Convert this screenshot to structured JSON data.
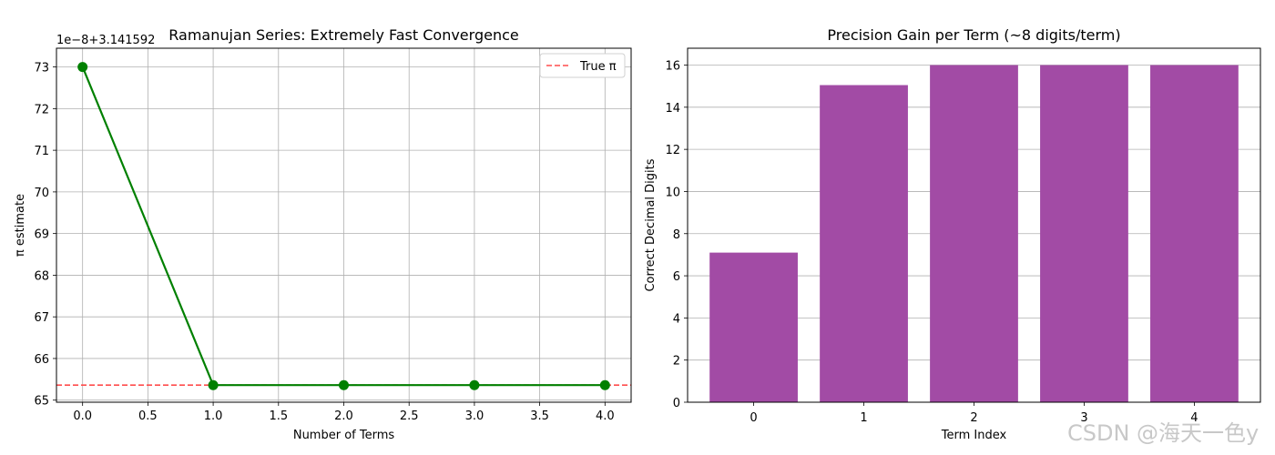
{
  "chart_data": [
    {
      "type": "line",
      "title": "Ramanujan Series: Extremely Fast Convergence",
      "xlabel": "Number of Terms",
      "ylabel": "π estimate",
      "offset_label": "1e−8+3.141592",
      "xlim": [
        -0.2,
        4.2
      ],
      "ylim": [
        64.95,
        73.45
      ],
      "x_ticks": [
        "0.0",
        "0.5",
        "1.0",
        "1.5",
        "2.0",
        "2.5",
        "3.0",
        "3.5",
        "4.0"
      ],
      "y_ticks": [
        "65",
        "66",
        "67",
        "68",
        "69",
        "70",
        "71",
        "72",
        "73"
      ],
      "grid": true,
      "legend_position": "top-right",
      "series": [
        {
          "x": [
            0,
            1,
            2,
            3,
            4
          ],
          "values": [
            73.0,
            65.36,
            65.36,
            65.36,
            65.36
          ],
          "color": "#008000",
          "marker": "circle"
        }
      ],
      "reference_line": {
        "name": "True π",
        "value": 65.36,
        "color": "#ff4d4d",
        "style": "dashed"
      }
    },
    {
      "type": "bar",
      "title": "Precision Gain per Term (~8 digits/term)",
      "xlabel": "Term Index",
      "ylabel": "Correct Decimal Digits",
      "categories": [
        "0",
        "1",
        "2",
        "3",
        "4"
      ],
      "values": [
        7.1,
        15.05,
        16.0,
        16.0,
        16.0
      ],
      "ylim": [
        0,
        16.8
      ],
      "y_ticks": [
        "0",
        "2",
        "4",
        "6",
        "8",
        "10",
        "12",
        "14",
        "16"
      ],
      "grid": true,
      "color": "#a24ba5"
    }
  ],
  "watermark": "CSDN @海天一色y"
}
